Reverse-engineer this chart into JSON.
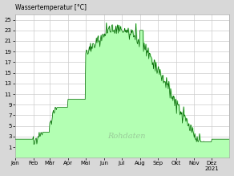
{
  "title": "Wassertemperatur [°C]",
  "watermark": "Rohdaten",
  "ylim": [
    -1,
    26
  ],
  "yticks": [
    1,
    3,
    5,
    7,
    9,
    11,
    13,
    15,
    17,
    19,
    21,
    23,
    25
  ],
  "months": [
    "Jan",
    "Feb",
    "Mär",
    "Apr",
    "Mai",
    "Jun",
    "Jul",
    "Aug",
    "Sep",
    "Okt",
    "Nov",
    "Dez"
  ],
  "fill_color": "#b3ffb3",
  "line_color": "#006600",
  "background_color": "#d8d8d8",
  "plot_bg_color": "#ffffff",
  "grid_color": "#cccccc",
  "title_fontsize": 5.5,
  "tick_fontsize": 5.0,
  "watermark_color": "#99cc99",
  "watermark_fontsize": 7,
  "year_label": "2021"
}
